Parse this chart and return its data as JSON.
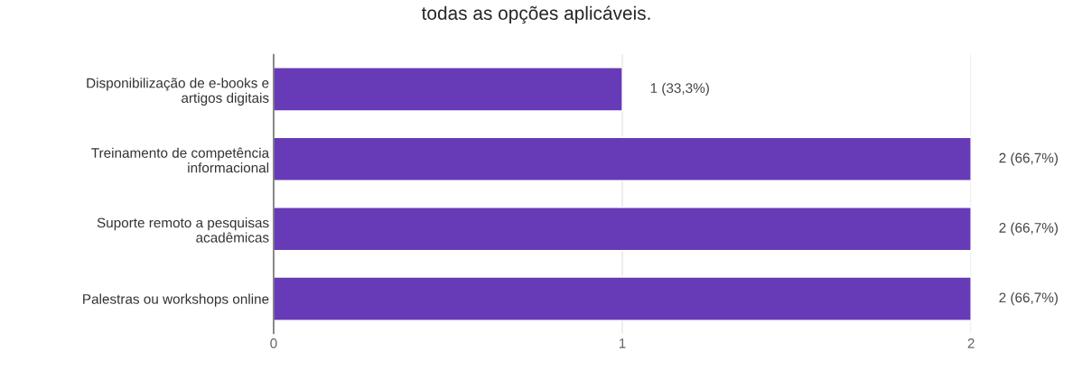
{
  "chart_data": {
    "type": "bar",
    "orientation": "horizontal",
    "title": "todas as opções aplicáveis.",
    "categories": [
      "Disponibilização de e-books e\nartigos digitais",
      "Treinamento de competência\ninformacional",
      "Suporte remoto a pesquisas\nacadêmicas",
      "Palestras ou workshops online"
    ],
    "values": [
      1,
      2,
      2,
      2
    ],
    "value_labels": [
      "1 (33,3%)",
      "2 (66,7%)",
      "2 (66,7%)",
      "2 (66,7%)"
    ],
    "color": "#673ab7",
    "xlim": [
      0,
      2
    ],
    "xticks": [
      0,
      1,
      2
    ],
    "grid": "x"
  }
}
